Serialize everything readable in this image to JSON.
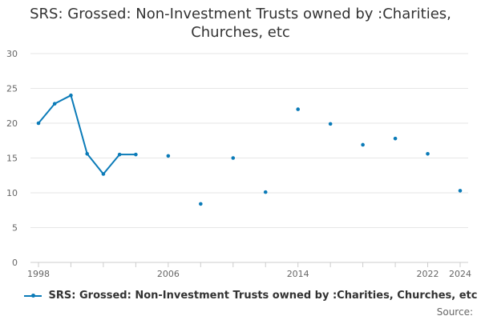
{
  "title_lines": [
    "SRS: Grossed: Non-Investment Trusts owned by :Charities,",
    "Churches, etc"
  ],
  "legend_label": "SRS: Grossed: Non-Investment Trusts owned by :Charities, Churches, etc",
  "source_label": "Source:",
  "colors": {
    "series": "#0b7bb8",
    "grid": "#e6e6e6",
    "axis": "#cccccc",
    "text": "#333333"
  },
  "chart_data": {
    "type": "line",
    "title": "SRS: Grossed: Non-Investment Trusts owned by :Charities, Churches, etc",
    "xlim": [
      1998,
      2024
    ],
    "ylim": [
      0,
      30
    ],
    "x_ticks": [
      1998,
      2006,
      2014,
      2022,
      2024
    ],
    "y_ticks": [
      0,
      5,
      10,
      15,
      20,
      25,
      30
    ],
    "grid": true,
    "legend": "bottom",
    "series": [
      {
        "name": "SRS: Grossed: Non-Investment Trusts owned by :Charities, Churches, etc",
        "points": [
          {
            "x": 1998,
            "y": 20.0
          },
          {
            "x": 1999,
            "y": 22.8
          },
          {
            "x": 2000,
            "y": 24.0
          },
          {
            "x": 2001,
            "y": 15.6
          },
          {
            "x": 2002,
            "y": 12.7
          },
          {
            "x": 2003,
            "y": 15.5
          },
          {
            "x": 2004,
            "y": 15.5
          },
          {
            "x": 2006,
            "y": 15.3
          },
          {
            "x": 2008,
            "y": 8.4
          },
          {
            "x": 2010,
            "y": 15.0
          },
          {
            "x": 2012,
            "y": 10.1
          },
          {
            "x": 2014,
            "y": 22.0
          },
          {
            "x": 2016,
            "y": 19.9
          },
          {
            "x": 2018,
            "y": 16.9
          },
          {
            "x": 2020,
            "y": 17.8
          },
          {
            "x": 2022,
            "y": 15.6
          },
          {
            "x": 2024,
            "y": 10.3
          }
        ]
      }
    ]
  }
}
